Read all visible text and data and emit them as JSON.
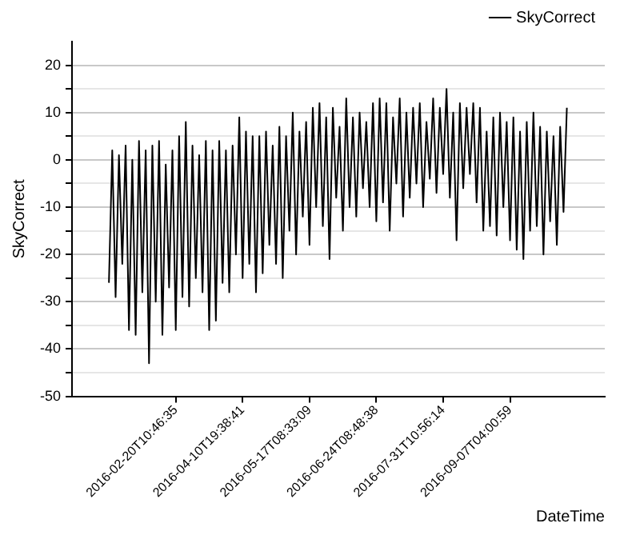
{
  "chart_data": {
    "type": "line",
    "xlabel": "DateTime",
    "ylabel": "SkyCorrect",
    "legend": "top right",
    "grid": "y",
    "marker": "none",
    "line_style": "solid",
    "categories": [
      null,
      null,
      null,
      null,
      null,
      null,
      null,
      null,
      null,
      null,
      null,
      null,
      null,
      null,
      null,
      null,
      null,
      null,
      null,
      null,
      "2016-02-20T10:46:35",
      null,
      null,
      null,
      null,
      null,
      null,
      null,
      null,
      null,
      null,
      null,
      null,
      null,
      null,
      null,
      null,
      null,
      null,
      null,
      "2016-04-10T19:38:41",
      null,
      null,
      null,
      null,
      null,
      null,
      null,
      null,
      null,
      null,
      null,
      null,
      null,
      null,
      null,
      null,
      null,
      null,
      null,
      "2016-05-17T08:33:09",
      null,
      null,
      null,
      null,
      null,
      null,
      null,
      null,
      null,
      null,
      null,
      null,
      null,
      null,
      null,
      null,
      null,
      null,
      null,
      "2016-06-24T08:48:38",
      null,
      null,
      null,
      null,
      null,
      null,
      null,
      null,
      null,
      null,
      null,
      null,
      null,
      null,
      null,
      null,
      null,
      null,
      null,
      "2016-07-31T10:56:14",
      null,
      null,
      null,
      null,
      null,
      null,
      null,
      null,
      null,
      null,
      null,
      null,
      null,
      null,
      null,
      null,
      null,
      null,
      null,
      "2016-09-07T04:00:59",
      null,
      null,
      null,
      null,
      null,
      null,
      null,
      null,
      null,
      null,
      null,
      null,
      null,
      null,
      null,
      null,
      null
    ],
    "ylim": [
      -50,
      25
    ],
    "yticks": [
      -50,
      {
        "value": -45,
        "label": null
      },
      -40,
      {
        "value": -35,
        "label": null
      },
      -30,
      {
        "value": -25,
        "label": null
      },
      -20,
      {
        "value": -15,
        "label": null
      },
      -10,
      {
        "value": -5,
        "label": null
      },
      0,
      {
        "value": 5,
        "label": null
      },
      10,
      {
        "value": 15,
        "label": null
      },
      20
    ],
    "series": [
      {
        "name": "SkyCorrect",
        "color": "#000000",
        "values": [
          -26,
          2,
          -29,
          1,
          -22,
          3,
          -36,
          0,
          -37,
          4,
          -28,
          2,
          -43,
          3,
          -30,
          4,
          -37,
          -1,
          -27,
          2,
          -36,
          5,
          -29,
          8,
          -31,
          3,
          -25,
          1,
          -28,
          4,
          -36,
          2,
          -34,
          4,
          -26,
          2,
          -28,
          3,
          -20,
          9,
          -25,
          6,
          -22,
          5,
          -28,
          5,
          -24,
          6,
          -18,
          3,
          -22,
          7,
          -25,
          5,
          -15,
          10,
          -20,
          6,
          -12,
          8,
          -18,
          11,
          -10,
          12,
          -14,
          9,
          -21,
          11,
          -8,
          7,
          -15,
          13,
          -10,
          9,
          -12,
          10,
          -6,
          8,
          -10,
          12,
          -13,
          13,
          -9,
          12,
          -15,
          9,
          -5,
          13,
          -12,
          10,
          -8,
          11,
          -5,
          12,
          -10,
          8,
          -4,
          13,
          -7,
          11,
          -3,
          15,
          -8,
          10,
          -17,
          12,
          -6,
          11,
          -3,
          12,
          -9,
          11,
          -15,
          6,
          -14,
          9,
          -16,
          10,
          -10,
          8,
          -17,
          9,
          -19,
          6,
          -21,
          8,
          -15,
          10,
          -14,
          7,
          -20,
          6,
          -13,
          5,
          -18,
          7,
          -11,
          11
        ]
      }
    ]
  }
}
